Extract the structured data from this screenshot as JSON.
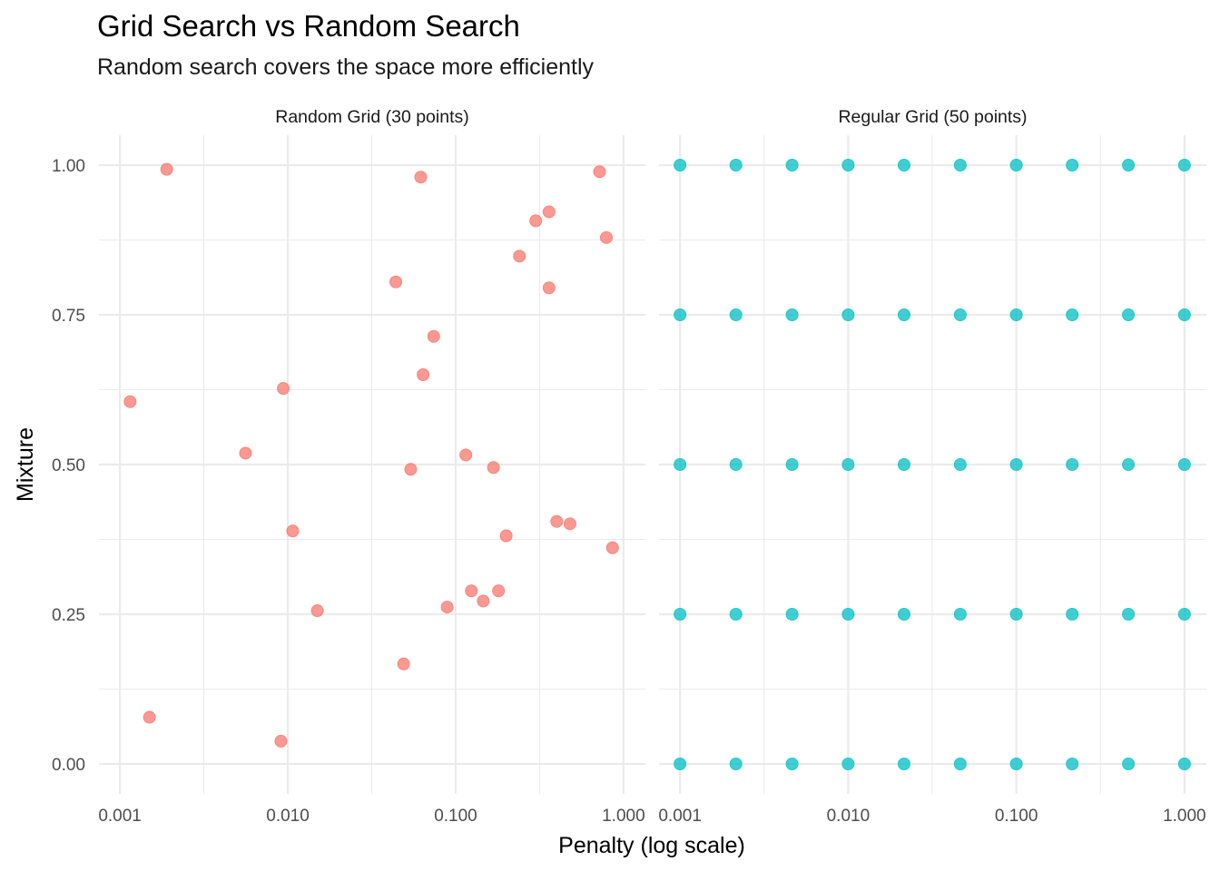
{
  "chart_data": {
    "type": "scatter",
    "title": "Grid Search vs Random Search",
    "subtitle": "Random search covers the space more efficiently",
    "xlabel": "Penalty (log scale)",
    "ylabel": "Mixture",
    "x_scale": "log10",
    "xlim": [
      0.00075,
      1.35
    ],
    "ylim": [
      -0.05,
      1.05
    ],
    "x_ticks": [
      0.001,
      0.01,
      0.1,
      1
    ],
    "x_tick_labels": [
      "0.001",
      "0.010",
      "0.100",
      "1.000"
    ],
    "y_ticks": [
      0,
      0.25,
      0.5,
      0.75,
      1
    ],
    "y_tick_labels": [
      "0.00",
      "0.25",
      "0.50",
      "0.75",
      "1.00"
    ],
    "grid": true,
    "legend": "none",
    "panels": [
      {
        "name": "Random Grid (30 points)",
        "color": "#F8766D",
        "points": [
          {
            "x": 0.0019,
            "y": 0.993
          },
          {
            "x": 0.062,
            "y": 0.98
          },
          {
            "x": 0.72,
            "y": 0.989
          },
          {
            "x": 0.36,
            "y": 0.922
          },
          {
            "x": 0.3,
            "y": 0.907
          },
          {
            "x": 0.79,
            "y": 0.879
          },
          {
            "x": 0.24,
            "y": 0.848
          },
          {
            "x": 0.044,
            "y": 0.805
          },
          {
            "x": 0.36,
            "y": 0.795
          },
          {
            "x": 0.074,
            "y": 0.714
          },
          {
            "x": 0.064,
            "y": 0.65
          },
          {
            "x": 0.0094,
            "y": 0.627
          },
          {
            "x": 0.00115,
            "y": 0.605
          },
          {
            "x": 0.0056,
            "y": 0.519
          },
          {
            "x": 0.115,
            "y": 0.516
          },
          {
            "x": 0.168,
            "y": 0.495
          },
          {
            "x": 0.054,
            "y": 0.492
          },
          {
            "x": 0.4,
            "y": 0.405
          },
          {
            "x": 0.48,
            "y": 0.401
          },
          {
            "x": 0.0107,
            "y": 0.389
          },
          {
            "x": 0.2,
            "y": 0.381
          },
          {
            "x": 0.86,
            "y": 0.361
          },
          {
            "x": 0.124,
            "y": 0.289
          },
          {
            "x": 0.18,
            "y": 0.289
          },
          {
            "x": 0.146,
            "y": 0.272
          },
          {
            "x": 0.089,
            "y": 0.262
          },
          {
            "x": 0.015,
            "y": 0.256
          },
          {
            "x": 0.049,
            "y": 0.167
          },
          {
            "x": 0.0015,
            "y": 0.078
          },
          {
            "x": 0.0091,
            "y": 0.038
          }
        ]
      },
      {
        "name": "Regular Grid (50 points)",
        "color": "#00BFC4",
        "grid_x": [
          0.001,
          0.00215,
          0.00464,
          0.01,
          0.0215,
          0.0464,
          0.1,
          0.215,
          0.464,
          1
        ],
        "grid_y": [
          0,
          0.25,
          0.5,
          0.75,
          1
        ]
      }
    ]
  }
}
